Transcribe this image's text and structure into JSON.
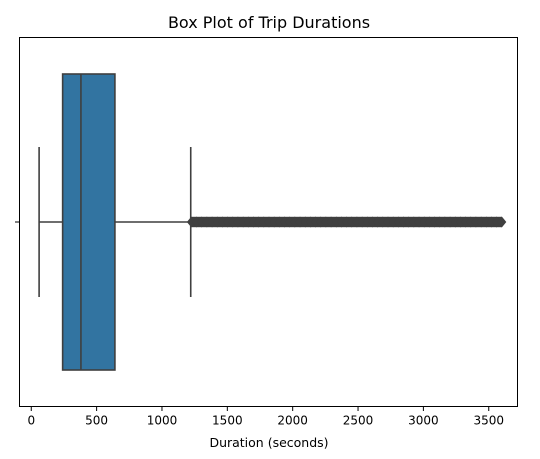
{
  "chart_data": {
    "type": "box",
    "title": "Box Plot of Trip Durations",
    "xlabel": "Duration (seconds)",
    "ylabel": "",
    "orientation": "horizontal",
    "xlim": [
      -90,
      3720
    ],
    "xticks": [
      0,
      500,
      1000,
      1500,
      2000,
      2500,
      3000,
      3500
    ],
    "xtick_labels": [
      "0",
      "500",
      "1000",
      "1500",
      "2000",
      "2500",
      "3000",
      "3500"
    ],
    "grid": false,
    "legend": "none",
    "series": [
      {
        "whisker_low": 60,
        "q1": 240,
        "median": 380,
        "q3": 640,
        "whisker_high": 1220,
        "outliers_range": [
          1225,
          3600
        ]
      }
    ],
    "colors": {
      "box_fill": "#3274a1",
      "line": "#3f3f3f",
      "axes": "#000000",
      "background": "#ffffff"
    }
  }
}
